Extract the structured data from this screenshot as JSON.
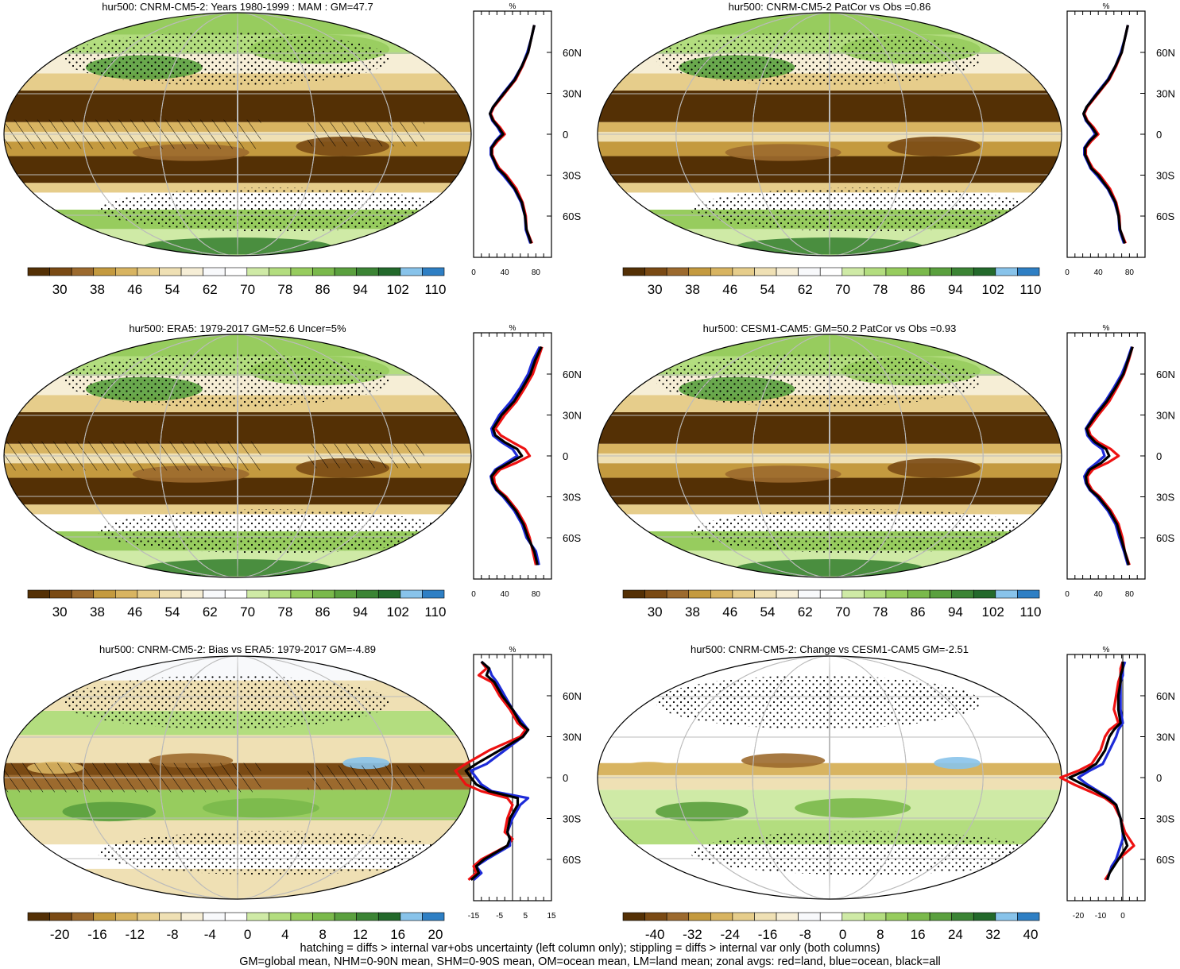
{
  "colors": {
    "mean_palette": [
      "#543005",
      "#7a4a14",
      "#9c6a2e",
      "#c49a3f",
      "#d8b461",
      "#e6cd8b",
      "#efe0b4",
      "#f6eed6",
      "#f8f9fb",
      "#ffffff",
      "#cfeaa6",
      "#b3dd7f",
      "#97cc5e",
      "#7ab94b",
      "#5aa03e",
      "#3b8434",
      "#23692b",
      "#88c3ea",
      "#2e7fc4"
    ],
    "bias_palette": [
      "#543005",
      "#7a4a14",
      "#9c6a2e",
      "#c49a3f",
      "#d8b461",
      "#e6cd8b",
      "#efe0b4",
      "#f6eed6",
      "#f8f9fb",
      "#ffffff",
      "#cfeaa6",
      "#b3dd7f",
      "#97cc5e",
      "#7ab94b",
      "#5aa03e",
      "#3b8434",
      "#23692b",
      "#88c3ea",
      "#2e7fc4"
    ],
    "land_line": "#ee1111",
    "ocean_line": "#1d2bd8",
    "all_line": "#000000"
  },
  "panels": [
    {
      "id": "cnrm-mean",
      "title": "hur500: CNRM-CM5-2: Years 1980-1999 : MAM : GM=47.7",
      "colorbar_ticks": [
        "30",
        "38",
        "46",
        "54",
        "62",
        "70",
        "78",
        "86",
        "94",
        "102",
        "110"
      ],
      "bias": false,
      "hatch": true,
      "stipple": true
    },
    {
      "id": "cnrm-patcor",
      "title": "hur500: CNRM-CM5-2 PatCor vs Obs =0.86",
      "colorbar_ticks": [
        "30",
        "38",
        "46",
        "54",
        "62",
        "70",
        "78",
        "86",
        "94",
        "102",
        "110"
      ],
      "bias": false,
      "hatch": false,
      "stipple": true
    },
    {
      "id": "era5",
      "title": "hur500: ERA5: 1979-2017 GM=52.6 Uncer=5%",
      "colorbar_ticks": [
        "30",
        "38",
        "46",
        "54",
        "62",
        "70",
        "78",
        "86",
        "94",
        "102",
        "110"
      ],
      "bias": false,
      "hatch": true,
      "stipple": true
    },
    {
      "id": "cesm",
      "title": "hur500: CESM1-CAM5: GM=50.2 PatCor vs Obs =0.93",
      "colorbar_ticks": [
        "30",
        "38",
        "46",
        "54",
        "62",
        "70",
        "78",
        "86",
        "94",
        "102",
        "110"
      ],
      "bias": false,
      "hatch": false,
      "stipple": true
    },
    {
      "id": "bias",
      "title": "hur500: CNRM-CM5-2: Bias vs ERA5: 1979-2017 GM=-4.89",
      "colorbar_ticks": [
        "-20",
        "-16",
        "-12",
        "-8",
        "-4",
        "0",
        "4",
        "8",
        "12",
        "16",
        "20"
      ],
      "bias": true,
      "hatch": true,
      "stipple": true
    },
    {
      "id": "change",
      "title": "hur500: CNRM-CM5-2: Change vs CESM1-CAM5 GM=-2.51",
      "colorbar_ticks": [
        "-40",
        "-32",
        "-24",
        "-16",
        "-8",
        "0",
        "8",
        "16",
        "24",
        "32",
        "40"
      ],
      "bias": true,
      "hatch": false,
      "stipple": true
    }
  ],
  "chart_data": [
    {
      "type": "line",
      "panel": "cnrm-mean",
      "title": "%",
      "xlim": [
        0,
        100
      ],
      "x_ticks": [
        "0",
        "40",
        "80"
      ],
      "lat_ticks": [
        "60N",
        "30N",
        "0",
        "30S",
        "60S"
      ],
      "lat": [
        80,
        70,
        60,
        50,
        40,
        30,
        20,
        15,
        10,
        5,
        0,
        -5,
        -10,
        -15,
        -20,
        -25,
        -30,
        -40,
        -50,
        -60,
        -70,
        -80
      ],
      "series": [
        {
          "values": [
            78,
            74,
            70,
            63,
            54,
            40,
            26,
            22,
            26,
            34,
            40,
            31,
            24,
            24,
            28,
            33,
            42,
            55,
            63,
            67,
            68,
            75
          ]
        },
        {
          "values": [
            78,
            74,
            69,
            62,
            52,
            38,
            25,
            21,
            24,
            31,
            36,
            28,
            22,
            22,
            26,
            30,
            38,
            52,
            61,
            66,
            67,
            73
          ]
        },
        {
          "values": [
            78,
            74,
            70,
            62,
            53,
            39,
            25,
            21,
            25,
            32,
            38,
            29,
            23,
            23,
            27,
            31,
            40,
            53,
            62,
            66,
            68,
            74
          ]
        }
      ]
    },
    {
      "type": "line",
      "panel": "cnrm-patcor",
      "title": "%",
      "xlim": [
        0,
        100
      ],
      "x_ticks": [
        "0",
        "40",
        "80"
      ],
      "lat_ticks": [
        "60N",
        "30N",
        "0",
        "30S",
        "60S"
      ],
      "lat": [
        80,
        70,
        60,
        50,
        40,
        30,
        20,
        15,
        10,
        5,
        0,
        -5,
        -10,
        -15,
        -20,
        -25,
        -30,
        -40,
        -50,
        -60,
        -70,
        -80
      ],
      "series": [
        {
          "values": [
            78,
            74,
            70,
            63,
            54,
            40,
            26,
            22,
            26,
            34,
            40,
            31,
            24,
            24,
            28,
            33,
            42,
            55,
            63,
            67,
            68,
            75
          ]
        },
        {
          "values": [
            78,
            74,
            69,
            62,
            52,
            38,
            25,
            21,
            24,
            31,
            36,
            28,
            22,
            22,
            26,
            30,
            38,
            52,
            61,
            66,
            67,
            73
          ]
        },
        {
          "values": [
            78,
            74,
            70,
            62,
            53,
            39,
            25,
            21,
            25,
            32,
            38,
            29,
            23,
            23,
            27,
            31,
            40,
            53,
            62,
            66,
            68,
            74
          ]
        }
      ]
    },
    {
      "type": "line",
      "panel": "era5",
      "title": "%",
      "xlim": [
        0,
        100
      ],
      "x_ticks": [
        "0",
        "40",
        "80"
      ],
      "lat_ticks": [
        "60N",
        "30N",
        "0",
        "30S",
        "60S"
      ],
      "lat": [
        80,
        70,
        60,
        50,
        40,
        30,
        20,
        15,
        10,
        5,
        0,
        -5,
        -10,
        -15,
        -20,
        -25,
        -30,
        -40,
        -50,
        -60,
        -70,
        -80
      ],
      "series": [
        {
          "values": [
            88,
            82,
            76,
            66,
            55,
            40,
            28,
            35,
            50,
            66,
            72,
            55,
            34,
            26,
            27,
            32,
            42,
            56,
            66,
            72,
            76,
            80
          ]
        },
        {
          "values": [
            85,
            76,
            70,
            60,
            48,
            33,
            23,
            25,
            36,
            50,
            56,
            42,
            28,
            22,
            24,
            29,
            38,
            52,
            62,
            68,
            80,
            84
          ]
        },
        {
          "values": [
            87,
            79,
            73,
            63,
            52,
            36,
            25,
            28,
            40,
            56,
            62,
            46,
            30,
            23,
            25,
            30,
            40,
            54,
            64,
            70,
            78,
            82
          ]
        }
      ]
    },
    {
      "type": "line",
      "panel": "cesm",
      "title": "%",
      "xlim": [
        0,
        100
      ],
      "x_ticks": [
        "0",
        "40",
        "80"
      ],
      "lat_ticks": [
        "60N",
        "30N",
        "0",
        "30S",
        "60S"
      ],
      "lat": [
        80,
        70,
        60,
        50,
        40,
        30,
        20,
        15,
        10,
        5,
        0,
        -5,
        -10,
        -15,
        -20,
        -25,
        -30,
        -40,
        -50,
        -60,
        -70,
        -80
      ],
      "series": [
        {
          "values": [
            84,
            79,
            73,
            64,
            54,
            40,
            27,
            30,
            40,
            56,
            66,
            52,
            33,
            26,
            27,
            32,
            42,
            56,
            66,
            71,
            74,
            80
          ]
        },
        {
          "values": [
            83,
            77,
            70,
            60,
            49,
            35,
            24,
            26,
            33,
            45,
            48,
            38,
            27,
            22,
            24,
            29,
            38,
            52,
            62,
            67,
            73,
            78
          ]
        },
        {
          "values": [
            84,
            78,
            72,
            62,
            51,
            37,
            25,
            28,
            36,
            50,
            54,
            44,
            29,
            24,
            25,
            30,
            40,
            54,
            64,
            69,
            74,
            79
          ]
        }
      ]
    },
    {
      "type": "line",
      "panel": "bias",
      "title": "%",
      "xlim": [
        -15,
        15
      ],
      "x_ticks": [
        "-15",
        "-5",
        "5",
        "15"
      ],
      "lat_ticks": [
        "60N",
        "30N",
        "0",
        "30S",
        "60S"
      ],
      "zero_line": 0,
      "lat": [
        85,
        80,
        75,
        70,
        60,
        50,
        40,
        35,
        30,
        20,
        10,
        5,
        0,
        -5,
        -10,
        -15,
        -20,
        -30,
        -40,
        -45,
        -50,
        -60,
        -65,
        -70,
        -75
      ],
      "series": [
        {
          "values": [
            -12,
            -10,
            -13,
            -8,
            -5,
            -1,
            2,
            5,
            3,
            -9,
            -18,
            -22,
            -20,
            -18,
            -12,
            -2,
            0,
            -2,
            -3,
            0,
            -2,
            -12,
            -15,
            -14,
            -17
          ]
        },
        {
          "values": [
            -12,
            -9,
            -8,
            -6,
            -3,
            0,
            4,
            6,
            4,
            -3,
            -10,
            -16,
            -14,
            -12,
            -8,
            6,
            3,
            0,
            -2,
            -1,
            -1,
            -10,
            -14,
            -12,
            -15
          ]
        },
        {
          "values": [
            -12,
            -9,
            -10,
            -7,
            -4,
            0,
            3,
            6,
            4,
            -5,
            -14,
            -18,
            -16,
            -14,
            -9,
            2,
            2,
            -1,
            -2,
            -1,
            -2,
            -11,
            -14,
            -13,
            -16
          ]
        }
      ]
    },
    {
      "type": "line",
      "panel": "change",
      "title": "%",
      "xlim": [
        -25,
        10
      ],
      "x_ticks": [
        "-20",
        "-10",
        "0"
      ],
      "lat_ticks": [
        "60N",
        "30N",
        "0",
        "30S",
        "60S"
      ],
      "zero_line": 0,
      "lat": [
        85,
        80,
        75,
        70,
        60,
        50,
        40,
        35,
        30,
        20,
        10,
        5,
        0,
        -5,
        -10,
        -15,
        -20,
        -30,
        -40,
        -45,
        -50,
        -60,
        -65,
        -70,
        -75
      ],
      "series": [
        {
          "values": [
            0,
            -1,
            -1,
            -2,
            -3,
            -4,
            -2,
            -6,
            -8,
            -10,
            -14,
            -20,
            -28,
            -22,
            -15,
            -8,
            -4,
            -1,
            1,
            3,
            5,
            -2,
            -5,
            -6,
            -8
          ]
        },
        {
          "values": [
            1,
            0,
            0,
            -1,
            -1,
            -1,
            0,
            -2,
            -3,
            -6,
            -9,
            -15,
            -20,
            -16,
            -11,
            -6,
            -3,
            -1,
            0,
            0,
            -1,
            -3,
            -5,
            -6,
            -7
          ]
        },
        {
          "values": [
            0,
            0,
            -1,
            -1,
            -2,
            -2,
            -1,
            -4,
            -6,
            -8,
            -12,
            -17,
            -24,
            -18,
            -12,
            -7,
            -3,
            -1,
            0,
            1,
            2,
            -2,
            -4,
            -6,
            -7
          ]
        }
      ]
    }
  ],
  "footer": {
    "line1": "hatching = diffs > internal var+obs uncertainty (left column only); stippling = diffs > internal var only (both columns)",
    "line2": "GM=global mean, NHM=0-90N mean, SHM=0-90S mean, OM=ocean mean, LM=land mean; zonal avgs: red=land, blue=ocean, black=all"
  }
}
